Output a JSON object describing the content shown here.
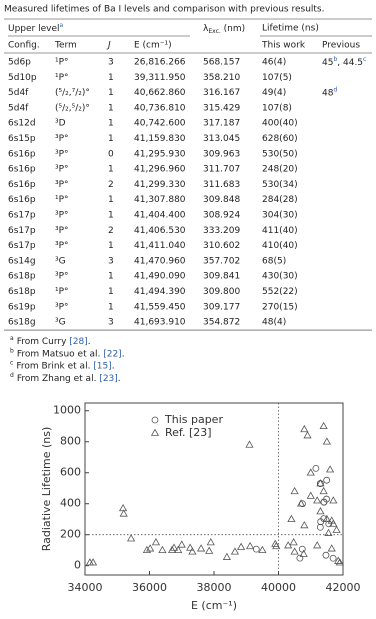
{
  "table": {
    "caption": "Measured lifetimes of Ba I levels and comparison with previous results.",
    "group_headers": {
      "upper": {
        "text": "Upper level",
        "note": "a"
      },
      "lambda": {
        "symbol": "λ",
        "sub": "Exc.",
        "unit": " (nm)"
      },
      "lifetime": "Lifetime (ns)"
    },
    "headers": [
      "Config.",
      "Term",
      "J",
      "E (cm⁻¹)",
      "This work",
      "Previous"
    ],
    "rows": [
      {
        "config": "5d6p",
        "term": "¹P°",
        "J": "3",
        "E": "26,816.266",
        "lambda": "568.157",
        "lifetime": "46(4)",
        "previous": [
          {
            "text": "45",
            "note": "b"
          },
          {
            "text": ", 44.5",
            "note": "c"
          }
        ]
      },
      {
        "config": "5d10p",
        "term": "¹P°",
        "J": "1",
        "E": "39,311.950",
        "lambda": "358.210",
        "lifetime": "107(5)"
      },
      {
        "config": "5d4f",
        "term": "(⁵/₂,⁷/₂)°",
        "J": "1",
        "E": "40,662.860",
        "lambda": "316.167",
        "lifetime": "49(4)",
        "previous": [
          {
            "text": "48",
            "note": "d"
          }
        ]
      },
      {
        "config": "5d4f",
        "term": "(⁵/₂,⁵/₂)°",
        "J": "1",
        "E": "40,736.810",
        "lambda": "315.429",
        "lifetime": "107(8)"
      },
      {
        "config": "6s12d",
        "term": "³D",
        "J": "1",
        "E": "40,742.600",
        "lambda": "317.187",
        "lifetime": "400(40)"
      },
      {
        "config": "6s15p",
        "term": "³P°",
        "J": "1",
        "E": "41,159.830",
        "lambda": "313.045",
        "lifetime": "628(60)"
      },
      {
        "config": "6s16p",
        "term": "³P°",
        "J": "0",
        "E": "41,295.930",
        "lambda": "309.963",
        "lifetime": "530(50)"
      },
      {
        "config": "6s16p",
        "term": "³P°",
        "J": "1",
        "E": "41,296.960",
        "lambda": "311.707",
        "lifetime": "248(20)"
      },
      {
        "config": "6s16p",
        "term": "³P°",
        "J": "2",
        "E": "41,299.330",
        "lambda": "311.683",
        "lifetime": "530(34)"
      },
      {
        "config": "6s16p",
        "term": "¹P°",
        "J": "1",
        "E": "41,307.880",
        "lambda": "309.848",
        "lifetime": "284(28)"
      },
      {
        "config": "6s17p",
        "term": "³P°",
        "J": "1",
        "E": "41,404.400",
        "lambda": "308.924",
        "lifetime": "304(30)"
      },
      {
        "config": "6s17p",
        "term": "³P°",
        "J": "2",
        "E": "41,406.530",
        "lambda": "333.209",
        "lifetime": "411(40)"
      },
      {
        "config": "6s17p",
        "term": "³P°",
        "J": "1",
        "E": "41,411.040",
        "lambda": "310.602",
        "lifetime": "410(40)"
      },
      {
        "config": "6s14g",
        "term": "³G",
        "J": "3",
        "E": "41,470.960",
        "lambda": "357.702",
        "lifetime": "68(5)"
      },
      {
        "config": "6s18p",
        "term": "³P°",
        "J": "1",
        "E": "41,490.090",
        "lambda": "309.841",
        "lifetime": "430(30)"
      },
      {
        "config": "6s18p",
        "term": "¹P°",
        "J": "1",
        "E": "41,494.390",
        "lambda": "309.800",
        "lifetime": "552(22)"
      },
      {
        "config": "6s19p",
        "term": "³P°",
        "J": "1",
        "E": "41,559.450",
        "lambda": "309.177",
        "lifetime": "270(15)"
      },
      {
        "config": "6s18g",
        "term": "³G",
        "J": "3",
        "E": "41,693.910",
        "lambda": "354.872",
        "lifetime": "48(4)"
      }
    ],
    "footnotes": [
      {
        "mark": "a",
        "text": "From Curry ",
        "ref": "[28]",
        "end": "."
      },
      {
        "mark": "b",
        "text": "From Matsuo et al. ",
        "ref": "[22]",
        "end": "."
      },
      {
        "mark": "c",
        "text": "From Brink et al. ",
        "ref": "[15]",
        "end": "."
      },
      {
        "mark": "d",
        "text": "From Zhang et al. ",
        "ref": "[23]",
        "end": "."
      }
    ]
  },
  "chart_data": {
    "type": "scatter",
    "xlabel": "E (cm⁻¹)",
    "ylabel": "Radiative Lifetime (ns)",
    "xlim": [
      34000,
      42000
    ],
    "xticks": [
      34000,
      36000,
      38000,
      40000,
      42000
    ],
    "ylim": [
      -60,
      1050
    ],
    "yticks": [
      0,
      200,
      400,
      600,
      800,
      1000
    ],
    "hlines": [
      200
    ],
    "vlines": [
      40000
    ],
    "legend": "upper center",
    "series": [
      {
        "name": "This paper",
        "marker": "circle",
        "color": "#555555",
        "x": [
          39312,
          40663,
          40737,
          40743,
          41160,
          41296,
          41297,
          41299,
          41308,
          41404,
          41407,
          41411,
          41471,
          41490,
          41494,
          41559,
          41694
        ],
        "values": [
          107,
          49,
          107,
          400,
          628,
          530,
          248,
          530,
          284,
          304,
          411,
          410,
          68,
          430,
          552,
          270,
          48
        ]
      },
      {
        "name": "Ref. [23]",
        "marker": "triangle",
        "color": "#555555",
        "x": [
          34150,
          34250,
          35180,
          35200,
          35430,
          35920,
          36020,
          36200,
          36400,
          36700,
          36760,
          36890,
          37000,
          37260,
          37330,
          37600,
          37900,
          37850,
          38400,
          38650,
          38840,
          39120,
          39500,
          39100,
          39900,
          39930,
          40470,
          40780,
          40800,
          41400,
          40900,
          41500,
          41600,
          41000,
          41300,
          41400,
          41000,
          40500,
          41200,
          41700,
          40700,
          41300,
          41500,
          41650,
          41700,
          40400,
          40800,
          41800,
          41550,
          41850,
          41900,
          40500,
          40300,
          41200,
          41650
        ],
        "values": [
          20,
          20,
          370,
          335,
          175,
          100,
          110,
          150,
          100,
          100,
          115,
          100,
          135,
          115,
          90,
          110,
          150,
          95,
          55,
          90,
          120,
          125,
          100,
          780,
          140,
          125,
          150,
          75,
          880,
          900,
          840,
          800,
          620,
          600,
          530,
          480,
          450,
          480,
          420,
          420,
          400,
          350,
          300,
          290,
          270,
          300,
          260,
          230,
          210,
          30,
          20,
          90,
          130,
          130,
          110
        ]
      }
    ]
  }
}
